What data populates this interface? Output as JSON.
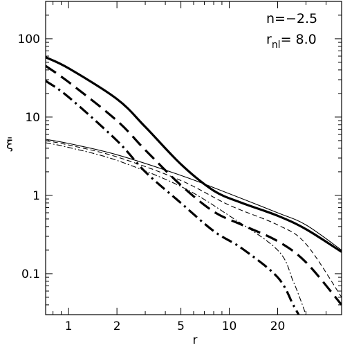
{
  "chart_data": {
    "type": "line",
    "xlabel": "r",
    "ylabel": "ξ̄",
    "xscale": "log",
    "yscale": "log",
    "xlim": [
      0.72,
      50
    ],
    "ylim": [
      0.03,
      300
    ],
    "x_ticks": [
      {
        "value": 1,
        "label": "1"
      },
      {
        "value": 2,
        "label": "2"
      },
      {
        "value": 5,
        "label": "5"
      },
      {
        "value": 10,
        "label": "10"
      },
      {
        "value": 20,
        "label": "20"
      }
    ],
    "y_ticks": [
      {
        "value": 0.1,
        "label": "0.1"
      },
      {
        "value": 1,
        "label": "1"
      },
      {
        "value": 10,
        "label": "10"
      },
      {
        "value": 100,
        "label": "100"
      }
    ],
    "grid": false,
    "annotations": {
      "n": "n=−2.5",
      "rnl_main": "r",
      "rnl_sub": "nl",
      "rnl_value": "=  8.0"
    },
    "series": [
      {
        "style": "thick-solid",
        "points": [
          [
            0.72,
            58
          ],
          [
            1,
            42
          ],
          [
            2,
            17
          ],
          [
            3,
            7.5
          ],
          [
            5,
            2.5
          ],
          [
            8,
            1.15
          ],
          [
            12,
            0.8
          ],
          [
            20,
            0.55
          ],
          [
            30,
            0.37
          ],
          [
            50,
            0.19
          ]
        ]
      },
      {
        "style": "thick-dashed",
        "points": [
          [
            0.72,
            45
          ],
          [
            1,
            28
          ],
          [
            2,
            9
          ],
          [
            3,
            3.8
          ],
          [
            5,
            1.35
          ],
          [
            8,
            0.62
          ],
          [
            12,
            0.42
          ],
          [
            20,
            0.26
          ],
          [
            30,
            0.14
          ],
          [
            50,
            0.04
          ]
        ]
      },
      {
        "style": "thick-dashdot",
        "points": [
          [
            0.72,
            29
          ],
          [
            1,
            18
          ],
          [
            2,
            5
          ],
          [
            3,
            2
          ],
          [
            5,
            0.8
          ],
          [
            8,
            0.35
          ],
          [
            12,
            0.21
          ],
          [
            20,
            0.09
          ],
          [
            25,
            0.04
          ],
          [
            27,
            0.03
          ]
        ]
      },
      {
        "style": "thin-solid",
        "points": [
          [
            0.72,
            5.2
          ],
          [
            1,
            4.6
          ],
          [
            2,
            3.3
          ],
          [
            5,
            1.8
          ],
          [
            10,
            1.05
          ],
          [
            20,
            0.6
          ],
          [
            30,
            0.42
          ],
          [
            50,
            0.2
          ]
        ]
      },
      {
        "style": "thin-dashed",
        "points": [
          [
            0.72,
            5
          ],
          [
            1,
            4.4
          ],
          [
            2,
            3.1
          ],
          [
            5,
            1.55
          ],
          [
            10,
            0.75
          ],
          [
            20,
            0.42
          ],
          [
            30,
            0.24
          ],
          [
            50,
            0.05
          ]
        ]
      },
      {
        "style": "thin-dashdot",
        "points": [
          [
            0.72,
            4.7
          ],
          [
            1,
            4.1
          ],
          [
            2,
            2.8
          ],
          [
            5,
            1.3
          ],
          [
            10,
            0.55
          ],
          [
            20,
            0.2
          ],
          [
            25,
            0.08
          ],
          [
            30,
            0.03
          ]
        ]
      }
    ]
  }
}
